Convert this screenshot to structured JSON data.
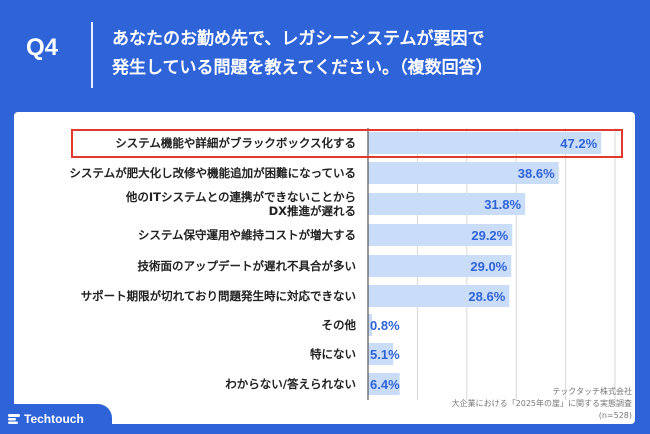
{
  "header": {
    "question_number": "Q4",
    "question_line1": "あなたのお勤め先で、レガシーシステムが要因で",
    "question_line2": "発生している問題を教えてください。（複数回答）"
  },
  "chart_data": {
    "type": "bar",
    "orientation": "horizontal",
    "categories": [
      "システム機能や詳細がブラックボックス化する",
      "システムが肥大化し改修や機能追加が困難になっている",
      "他のITシステムとの連携ができないことからDX推進が遅れる",
      "システム保守運用や維持コストが増大する",
      "技術面のアップデートが遅れ不具合が多い",
      "サポート期限が切れており問題発生時に対応できない",
      "その他",
      "特にない",
      "わからない/答えられない"
    ],
    "category_lines": [
      [
        "システム機能や詳細がブラックボックス化する"
      ],
      [
        "システムが肥大化し改修や機能追加が困難になっている"
      ],
      [
        "他のITシステムとの連携ができないことから",
        "DX推進が遅れる"
      ],
      [
        "システム保守運用や維持コストが増大する"
      ],
      [
        "技術面のアップデートが遅れ不具合が多い"
      ],
      [
        "サポート期限が切れており問題発生時に対応できない"
      ],
      [
        "その他"
      ],
      [
        "特にない"
      ],
      [
        "わからない/答えられない"
      ]
    ],
    "values": [
      47.2,
      38.6,
      31.8,
      29.2,
      29.0,
      28.6,
      0.8,
      5.1,
      6.4
    ],
    "value_labels": [
      "47.2%",
      "38.6%",
      "31.8%",
      "29.2%",
      "29.0%",
      "28.6%",
      "0.8%",
      "5.1%",
      "6.4%"
    ],
    "xlim": [
      0,
      50
    ],
    "grid": true,
    "highlighted_category_index": 0
  },
  "colors": {
    "background": "#2f63d8",
    "bar_fill": "#c9dcf8",
    "value_text": "#2f63d8",
    "highlight_border": "#e03a2f",
    "gridline": "#d7d7d7"
  },
  "footer": {
    "source_line1": "テックタッチ株式会社",
    "source_line2": "大企業における「2025年の崖」に関する実態調査",
    "sample_size": "(n=528)"
  },
  "brand": {
    "name": "Techtouch",
    "icon": "techtouch-logo-icon"
  }
}
